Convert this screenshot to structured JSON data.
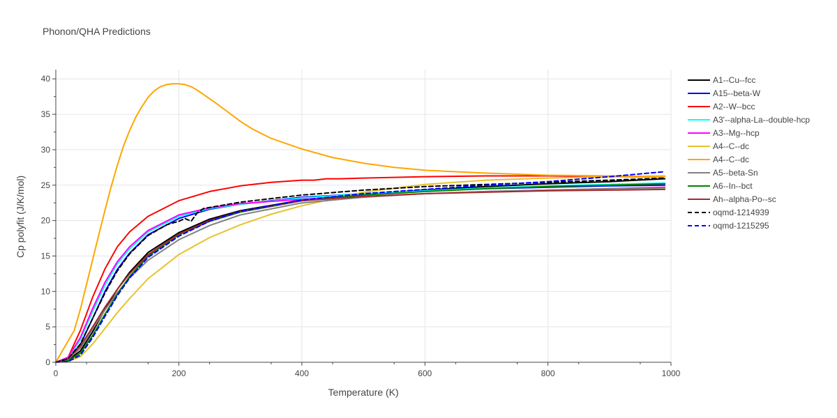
{
  "chart_data": {
    "type": "line",
    "title": "Phonon/QHA Predictions",
    "xlabel": "Temperature (K)",
    "ylabel": "Cp polyfit (J/K/mol)",
    "xlim": [
      0,
      1000
    ],
    "ylim": [
      0,
      41.3
    ],
    "x_ticks": [
      0,
      200,
      400,
      600,
      800,
      1000
    ],
    "y_ticks": [
      0,
      5,
      10,
      15,
      20,
      25,
      30,
      35,
      40
    ],
    "grid": true,
    "legend_position": "right",
    "series": [
      {
        "name": "A1--Cu--fcc",
        "color": "#000000",
        "dash": "solid",
        "x": [
          0,
          20,
          40,
          60,
          80,
          100,
          120,
          150,
          200,
          250,
          300,
          400,
          500,
          600,
          700,
          800,
          900,
          990
        ],
        "y": [
          0,
          0.3,
          1.6,
          4.3,
          7.5,
          10.3,
          12.7,
          15.5,
          18.3,
          20.2,
          21.4,
          22.9,
          23.7,
          24.3,
          24.8,
          25.2,
          25.5,
          25.9
        ]
      },
      {
        "name": "A15--beta-W",
        "color": "#0000ff",
        "dash": "solid",
        "x": [
          0,
          20,
          40,
          60,
          80,
          100,
          120,
          150,
          200,
          250,
          300,
          400,
          500,
          600,
          700,
          800,
          900,
          990
        ],
        "y": [
          0,
          0.5,
          2.5,
          6.2,
          10.0,
          13.1,
          15.4,
          18.0,
          20.3,
          21.6,
          22.3,
          23.3,
          23.8,
          24.2,
          24.5,
          24.7,
          24.9,
          25.0
        ]
      },
      {
        "name": "A2--W--bcc",
        "color": "#ff0000",
        "dash": "solid",
        "x": [
          0,
          20,
          40,
          60,
          80,
          100,
          120,
          150,
          200,
          250,
          300,
          350,
          400,
          420,
          440,
          460,
          500,
          600,
          700,
          800,
          900,
          990
        ],
        "y": [
          0,
          0.7,
          4.5,
          9.2,
          13.2,
          16.3,
          18.4,
          20.6,
          22.8,
          24.1,
          24.9,
          25.4,
          25.7,
          25.7,
          25.9,
          25.9,
          26.0,
          26.2,
          26.3,
          26.3,
          26.2,
          26.2
        ]
      },
      {
        "name": "A3'--alpha-La--double-hcp",
        "color": "#00ffff",
        "dash": "solid",
        "x": [
          0,
          20,
          40,
          60,
          80,
          100,
          120,
          150,
          200,
          250,
          300,
          400,
          500,
          600,
          700,
          800,
          900,
          990
        ],
        "y": [
          0,
          0.6,
          3.2,
          7.2,
          10.9,
          13.9,
          16.0,
          18.4,
          20.6,
          21.7,
          22.3,
          23.2,
          23.8,
          24.2,
          24.6,
          24.9,
          25.1,
          25.3
        ]
      },
      {
        "name": "A3--Mg--hcp",
        "color": "#ff00ff",
        "dash": "solid",
        "x": [
          0,
          20,
          40,
          60,
          80,
          100,
          120,
          150,
          200,
          250,
          300,
          400,
          500,
          600,
          700,
          800,
          900,
          990
        ],
        "y": [
          0,
          0.7,
          3.5,
          7.6,
          11.3,
          14.2,
          16.3,
          18.6,
          20.8,
          21.8,
          22.4,
          23.0,
          23.4,
          23.8,
          24.1,
          24.3,
          24.5,
          24.7
        ]
      },
      {
        "name": "A4--C--dc",
        "color": "#e6c229",
        "dash": "solid",
        "x": [
          0,
          20,
          40,
          60,
          80,
          100,
          120,
          150,
          200,
          250,
          300,
          350,
          400,
          500,
          600,
          700,
          800,
          900,
          990
        ],
        "y": [
          0,
          0.1,
          0.8,
          2.6,
          4.8,
          7.0,
          9.0,
          11.8,
          15.2,
          17.6,
          19.4,
          20.9,
          22.1,
          24.0,
          25.1,
          25.7,
          26.0,
          26.2,
          26.3
        ]
      },
      {
        "name": "A4--C--dc",
        "color": "#ffa500",
        "dash": "solid",
        "x": [
          0,
          10,
          20,
          30,
          40,
          50,
          60,
          70,
          80,
          90,
          100,
          110,
          120,
          130,
          140,
          150,
          160,
          170,
          180,
          190,
          200,
          210,
          220,
          230,
          240,
          260,
          280,
          300,
          320,
          350,
          400,
          450,
          500,
          550,
          600,
          700,
          800,
          900,
          990
        ],
        "y": [
          0,
          1.5,
          3.0,
          4.5,
          7.5,
          11.0,
          14.5,
          18.0,
          21.5,
          24.8,
          27.8,
          30.5,
          32.7,
          34.6,
          36.1,
          37.4,
          38.3,
          38.9,
          39.2,
          39.3,
          39.3,
          39.2,
          38.9,
          38.4,
          37.8,
          36.6,
          35.3,
          34.0,
          32.9,
          31.6,
          30.1,
          28.9,
          28.1,
          27.5,
          27.1,
          26.7,
          26.4,
          26.3,
          26.2
        ]
      },
      {
        "name": "A5--beta-Sn",
        "color": "#808080",
        "dash": "solid",
        "x": [
          0,
          20,
          40,
          60,
          80,
          100,
          120,
          150,
          200,
          250,
          300,
          400,
          500,
          600,
          700,
          800,
          900,
          990
        ],
        "y": [
          0,
          0.4,
          2.0,
          4.7,
          7.4,
          9.8,
          11.9,
          14.4,
          17.3,
          19.3,
          20.8,
          22.5,
          23.3,
          23.8,
          24.1,
          24.3,
          24.5,
          24.6
        ]
      },
      {
        "name": "A6--In--bct",
        "color": "#008000",
        "dash": "solid",
        "x": [
          0,
          20,
          40,
          60,
          80,
          100,
          120,
          150,
          200,
          250,
          300,
          400,
          500,
          600,
          700,
          800,
          900,
          990
        ],
        "y": [
          0,
          0.2,
          1.3,
          3.8,
          6.8,
          9.6,
          12.1,
          15.0,
          18.0,
          19.9,
          21.2,
          22.8,
          23.6,
          24.1,
          24.5,
          24.8,
          25.0,
          25.2
        ]
      },
      {
        "name": "Ah--alpha-Po--sc",
        "color": "#a52a2a",
        "dash": "solid",
        "x": [
          0,
          20,
          40,
          60,
          80,
          100,
          120,
          150,
          200,
          250,
          300,
          400,
          500,
          600,
          700,
          800,
          900,
          990
        ],
        "y": [
          0,
          0.5,
          2.3,
          5.0,
          7.8,
          10.3,
          12.5,
          15.2,
          18.1,
          20.0,
          21.3,
          22.8,
          23.4,
          23.8,
          24.0,
          24.2,
          24.3,
          24.4
        ]
      },
      {
        "name": "oqmd-1214939",
        "color": "#000000",
        "dash": "dash",
        "x": [
          0,
          20,
          40,
          60,
          80,
          100,
          120,
          150,
          180,
          200,
          210,
          220,
          230,
          240,
          260,
          300,
          400,
          500,
          600,
          700,
          800,
          900,
          990
        ],
        "y": [
          0,
          0.5,
          2.6,
          6.2,
          9.8,
          12.9,
          15.3,
          17.9,
          19.4,
          19.9,
          20.3,
          19.9,
          21.1,
          21.7,
          22.0,
          22.6,
          23.6,
          24.3,
          24.8,
          25.1,
          25.4,
          25.7,
          26.0
        ]
      },
      {
        "name": "oqmd-1215295",
        "color": "#0000ff",
        "dash": "dash",
        "x": [
          0,
          20,
          40,
          60,
          80,
          100,
          120,
          150,
          200,
          250,
          300,
          400,
          500,
          600,
          700,
          800,
          900,
          990
        ],
        "y": [
          0,
          0.1,
          1.0,
          3.5,
          6.5,
          9.4,
          11.9,
          14.8,
          17.8,
          19.9,
          21.3,
          22.9,
          23.8,
          24.4,
          25.0,
          25.5,
          26.2,
          26.9
        ]
      }
    ]
  }
}
